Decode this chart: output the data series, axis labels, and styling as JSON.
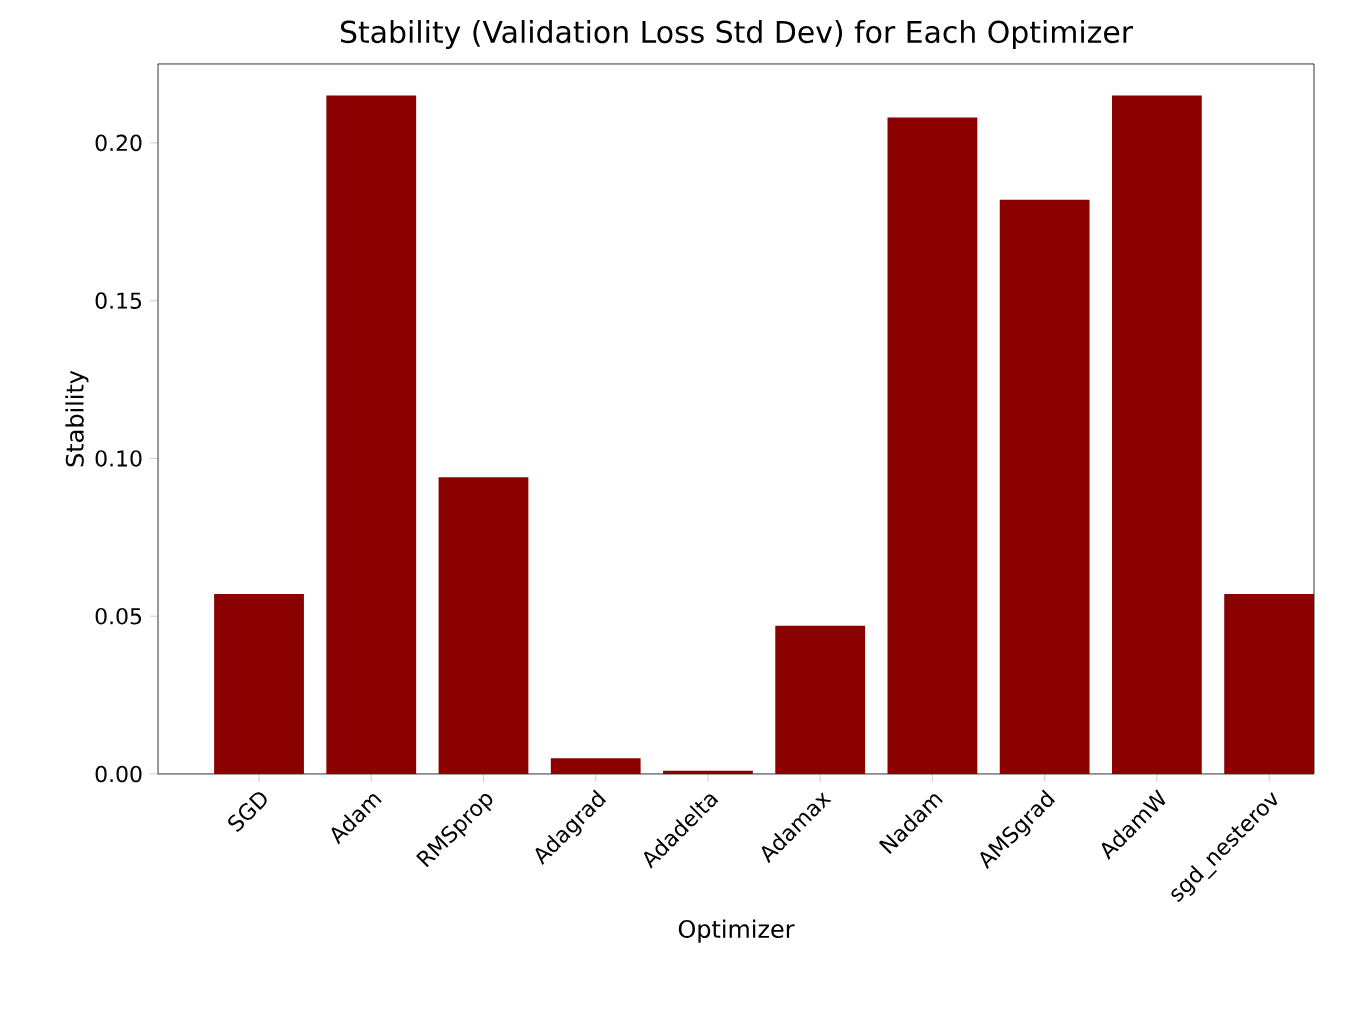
{
  "chart_data": {
    "type": "bar",
    "title": "Stability (Validation Loss Std Dev) for Each Optimizer",
    "xlabel": "Optimizer",
    "ylabel": "Stability",
    "categories": [
      "SGD",
      "Adam",
      "RMSprop",
      "Adagrad",
      "Adadelta",
      "Adamax",
      "Nadam",
      "AMSgrad",
      "AdamW",
      "sgd_nesterov"
    ],
    "values": [
      0.057,
      0.215,
      0.094,
      0.005,
      0.001,
      0.047,
      0.208,
      0.182,
      0.215,
      0.057
    ],
    "color": "#8b0000",
    "ylim": [
      0,
      0.225
    ],
    "yticks": [
      {
        "value": 0,
        "label": "0.00"
      },
      {
        "value": 0.05,
        "label": "0.05"
      },
      {
        "value": 0.1,
        "label": "0.10"
      },
      {
        "value": 0.15,
        "label": "0.15"
      },
      {
        "value": 0.2,
        "label": "0.20"
      }
    ],
    "grid": false
  }
}
